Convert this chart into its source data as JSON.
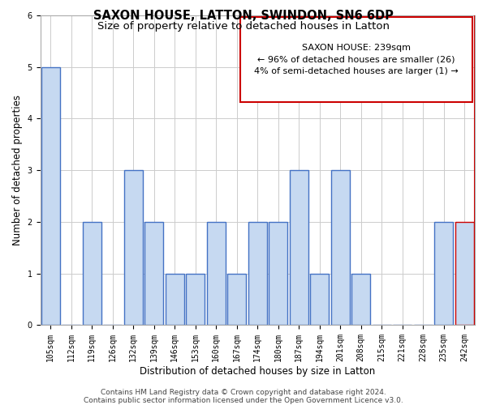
{
  "title": "SAXON HOUSE, LATTON, SWINDON, SN6 6DP",
  "subtitle": "Size of property relative to detached houses in Latton",
  "xlabel": "Distribution of detached houses by size in Latton",
  "ylabel": "Number of detached properties",
  "categories": [
    "105sqm",
    "112sqm",
    "119sqm",
    "126sqm",
    "132sqm",
    "139sqm",
    "146sqm",
    "153sqm",
    "160sqm",
    "167sqm",
    "174sqm",
    "180sqm",
    "187sqm",
    "194sqm",
    "201sqm",
    "208sqm",
    "215sqm",
    "221sqm",
    "228sqm",
    "235sqm",
    "242sqm"
  ],
  "values": [
    5,
    0,
    2,
    0,
    3,
    2,
    1,
    1,
    2,
    1,
    2,
    2,
    3,
    1,
    3,
    1,
    0,
    0,
    0,
    2,
    2
  ],
  "bar_color": "#c6d9f1",
  "bar_edge_color": "#4472c4",
  "highlight_edge_color": "#cc0000",
  "ylim": [
    0,
    6
  ],
  "yticks": [
    0,
    1,
    2,
    3,
    4,
    5,
    6
  ],
  "annotation_title": "SAXON HOUSE: 239sqm",
  "annotation_line1": "← 96% of detached houses are smaller (26)",
  "annotation_line2": "4% of semi-detached houses are larger (1) →",
  "footer_line1": "Contains HM Land Registry data © Crown copyright and database right 2024.",
  "footer_line2": "Contains public sector information licensed under the Open Government Licence v3.0.",
  "bg_color": "#ffffff",
  "grid_color": "#cccccc",
  "title_fontsize": 10.5,
  "subtitle_fontsize": 9.5,
  "tick_fontsize": 7,
  "ylabel_fontsize": 8.5,
  "xlabel_fontsize": 8.5,
  "footer_fontsize": 6.5,
  "annotation_fontsize": 8,
  "highlight_index": 20
}
